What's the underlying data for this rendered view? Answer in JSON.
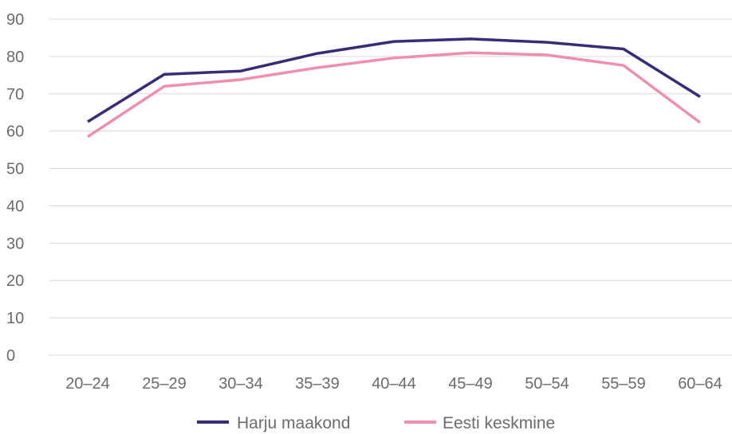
{
  "chart_data": {
    "type": "line",
    "categories": [
      "20–24",
      "25–29",
      "30–34",
      "35–39",
      "40–44",
      "45–49",
      "50–54",
      "55–59",
      "60–64"
    ],
    "series": [
      {
        "name": "Harju maakond",
        "color": "#3b2a7a",
        "values": [
          62.5,
          75.2,
          76.1,
          80.8,
          84.0,
          84.7,
          83.8,
          82.0,
          69.2
        ]
      },
      {
        "name": "Eesti keskmine",
        "color": "#ef8fb0",
        "values": [
          58.5,
          72.0,
          73.8,
          77.0,
          79.6,
          81.0,
          80.4,
          77.6,
          62.3
        ]
      }
    ],
    "yticks": [
      "0",
      "10",
      "20",
      "30",
      "40",
      "50",
      "60",
      "70",
      "80",
      "90"
    ],
    "ylim": [
      0,
      90
    ],
    "grid": true,
    "legend_position": "bottom-center"
  }
}
